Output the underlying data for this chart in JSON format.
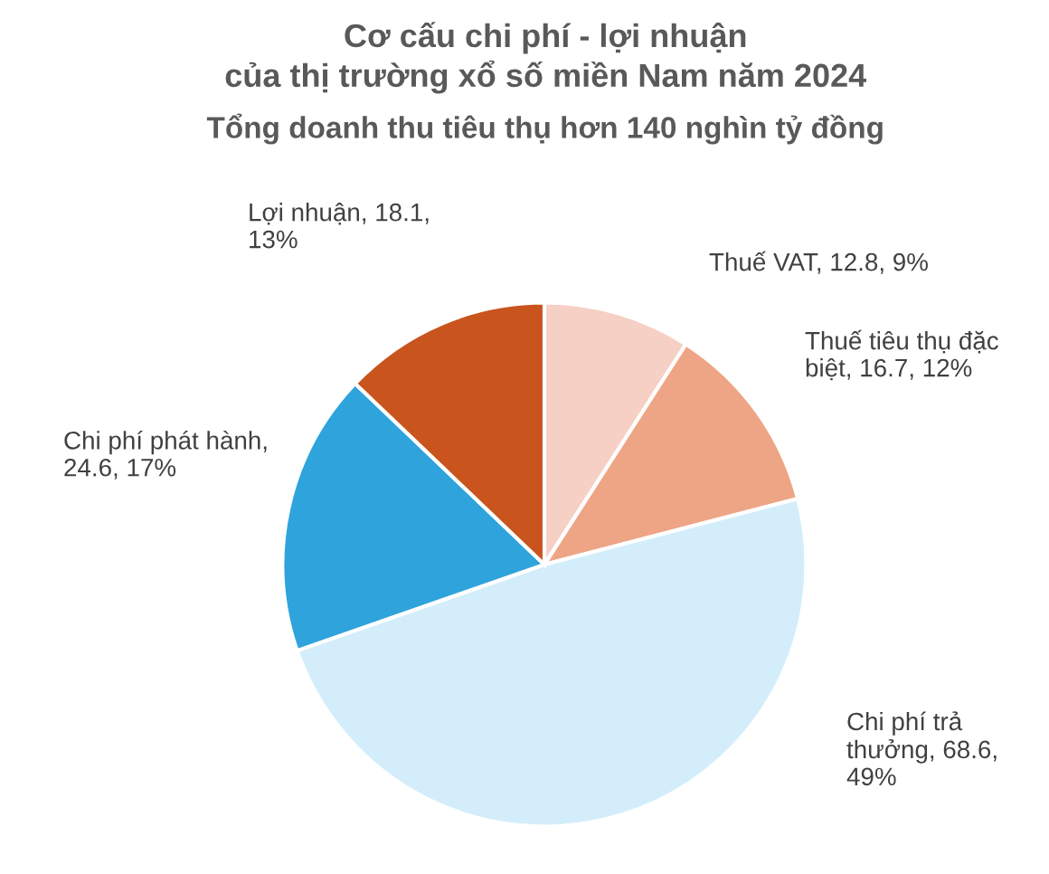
{
  "chart_data": {
    "type": "pie",
    "title": "Cơ cấu chi phí - lợi nhuận\ncủa thị trường xổ số miền Nam năm 2024",
    "subtitle": "Tổng doanh thu tiêu thụ hơn 140 nghìn tỷ đồng",
    "categories": [
      "Thuế VAT",
      "Thuế tiêu thụ đặc\nbiệt",
      "Chi phí trả\nthưởng",
      "Chi phí phát hành",
      "Lợi nhuận"
    ],
    "values": [
      12.8,
      16.7,
      68.6,
      24.6,
      18.1
    ],
    "value_labels": [
      ", 12.8, 9%",
      ", 16.7, 12%",
      ", 68.6,\n49%",
      ",\n24.6, 17%",
      ", 18.1,\n13%"
    ],
    "colors": [
      "#f6d0c4",
      "#eea585",
      "#d3eefa",
      "#2fa3dc",
      "#c9541d"
    ]
  }
}
